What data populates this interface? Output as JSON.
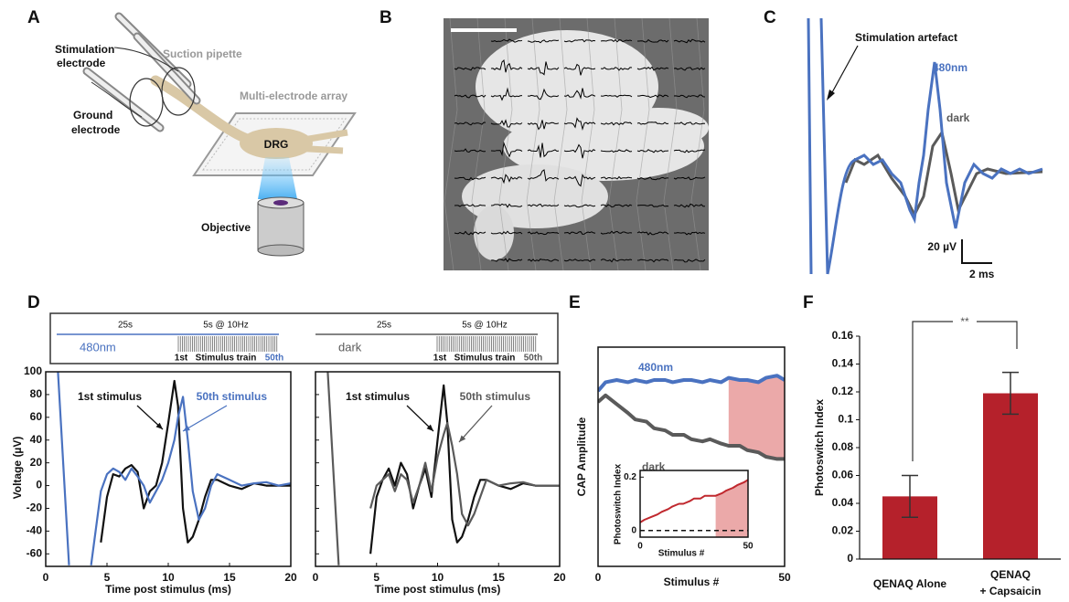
{
  "panel_labels": [
    "A",
    "B",
    "C",
    "D",
    "E",
    "F"
  ],
  "panel_a": {
    "stimulation_electrode": [
      "Stimulation",
      "electrode"
    ],
    "suction_pipette": "Suction pipette",
    "mea": "Multi-electrode array",
    "ground_electrode": [
      "Ground",
      "electrode"
    ],
    "drg": "DRG",
    "objective": "Objective"
  },
  "panel_c": {
    "artefact": "Stimulation artefact",
    "series_480": "480nm",
    "series_dark": "dark",
    "scale_y": "20 µV",
    "scale_x": "2 ms"
  },
  "panel_d": {
    "ylabel": "Voltage (µV)",
    "timeline": [
      {
        "pre": "25s",
        "train": "5s @ 10Hz",
        "condition": "480nm",
        "first": "1st",
        "train_label": "Stimulus train",
        "last": "50th",
        "color": "#4a72c0"
      },
      {
        "pre": "25s",
        "train": "5s @ 10Hz",
        "condition": "dark",
        "first": "1st",
        "train_label": "Stimulus train",
        "last": "50th",
        "color": "#5a5a5a"
      }
    ],
    "charts": [
      {
        "type": "line",
        "xlabel": "Time post stimulus (ms)",
        "xlim": [
          0,
          20
        ],
        "xticks": [
          0,
          5,
          10,
          15,
          20
        ],
        "ylim": [
          -71,
          100
        ],
        "yticks": [
          -60,
          -40,
          -20,
          0,
          20,
          40,
          60,
          80,
          100
        ],
        "x": [
          1.0,
          1.9,
          2.8,
          3.7,
          4.5,
          5,
          5.5,
          6,
          6.5,
          7,
          7.5,
          8,
          8.5,
          9,
          9.5,
          10,
          10.5,
          10.8,
          11.2,
          11.6,
          12,
          12.5,
          13,
          13.5,
          14,
          15,
          16,
          17,
          18,
          19,
          20
        ],
        "series": [
          {
            "name": "1st stimulus",
            "color": "#111111",
            "values": [
              null,
              null,
              null,
              null,
              -50,
              -10,
              10,
              8,
              15,
              18,
              12,
              -20,
              -5,
              0,
              20,
              55,
              92,
              70,
              -20,
              -50,
              -45,
              -30,
              -10,
              5,
              5,
              0,
              -3,
              2,
              0,
              0,
              0
            ]
          },
          {
            "name": "50th stimulus",
            "color": "#4a72c0",
            "values": [
              100,
              -70,
              null,
              -70,
              -5,
              10,
              15,
              12,
              5,
              15,
              8,
              0,
              -15,
              -5,
              5,
              20,
              40,
              60,
              78,
              40,
              -5,
              -30,
              -20,
              0,
              10,
              5,
              0,
              2,
              3,
              0,
              2
            ]
          }
        ]
      },
      {
        "type": "line",
        "xlabel": "Time post stimulus (ms)",
        "xlim": [
          0,
          20
        ],
        "xticks": [
          0,
          5,
          10,
          15,
          20
        ],
        "ylim": [
          -71,
          100
        ],
        "yticks": [
          -60,
          -40,
          -20,
          0,
          20,
          40,
          60,
          80,
          100
        ],
        "x": [
          1.0,
          1.9,
          2.8,
          3.7,
          4.5,
          5,
          5.5,
          6,
          6.5,
          7,
          7.5,
          8,
          8.5,
          9,
          9.5,
          10,
          10.5,
          10.8,
          11.2,
          11.6,
          12,
          12.5,
          13,
          13.5,
          14,
          15,
          16,
          17,
          18,
          19,
          20
        ],
        "series": [
          {
            "name": "1st stimulus",
            "color": "#111111",
            "values": [
              null,
              null,
              null,
              null,
              -60,
              -10,
              5,
              15,
              0,
              20,
              10,
              -20,
              0,
              15,
              -10,
              40,
              88,
              55,
              -30,
              -50,
              -45,
              -30,
              -10,
              5,
              5,
              0,
              -3,
              2,
              0,
              0,
              0
            ]
          },
          {
            "name": "50th stimulus",
            "color": "#5a5a5a",
            "values": [
              100,
              -70,
              null,
              null,
              -20,
              0,
              5,
              10,
              -5,
              10,
              5,
              -15,
              0,
              20,
              -5,
              25,
              45,
              55,
              35,
              10,
              -25,
              -35,
              -25,
              -10,
              5,
              0,
              2,
              3,
              0,
              0,
              0
            ]
          }
        ]
      }
    ]
  },
  "panel_e": {
    "type": "line",
    "xlabel": "Stimulus #",
    "ylabel": "CAP Amplitude",
    "xlim": [
      0,
      50
    ],
    "xticks": [
      0,
      50
    ],
    "ylim": [
      0,
      1
    ],
    "highlight": [
      35,
      50
    ],
    "x": [
      0,
      2,
      5,
      8,
      10,
      13,
      15,
      18,
      20,
      23,
      25,
      28,
      30,
      33,
      35,
      38,
      40,
      43,
      45,
      48,
      50
    ],
    "series": [
      {
        "name": "480nm",
        "color": "#4a72c0",
        "values": [
          0.8,
          0.84,
          0.85,
          0.84,
          0.85,
          0.84,
          0.85,
          0.85,
          0.84,
          0.85,
          0.85,
          0.84,
          0.85,
          0.84,
          0.86,
          0.85,
          0.85,
          0.84,
          0.86,
          0.87,
          0.85
        ]
      },
      {
        "name": "dark",
        "color": "#5a5a5a",
        "values": [
          0.75,
          0.78,
          0.74,
          0.7,
          0.67,
          0.66,
          0.63,
          0.62,
          0.6,
          0.6,
          0.58,
          0.57,
          0.58,
          0.56,
          0.55,
          0.55,
          0.53,
          0.52,
          0.5,
          0.49,
          0.49
        ]
      }
    ],
    "inset": {
      "type": "line",
      "xlabel": "Stimulus #",
      "ylabel": "Photoswitch Index",
      "xlim": [
        0,
        50
      ],
      "xticks": [
        0,
        50
      ],
      "ylim": [
        -0.025,
        0.225
      ],
      "yticks": [
        0,
        0.2
      ],
      "reference": 0,
      "highlight": [
        35,
        50
      ],
      "x": [
        0,
        2,
        5,
        8,
        10,
        13,
        15,
        18,
        20,
        23,
        25,
        28,
        30,
        33,
        35,
        38,
        40,
        43,
        45,
        48,
        50
      ],
      "series": [
        {
          "color": "#c0282e",
          "values": [
            0.03,
            0.04,
            0.05,
            0.06,
            0.07,
            0.08,
            0.09,
            0.1,
            0.1,
            0.11,
            0.12,
            0.12,
            0.13,
            0.13,
            0.13,
            0.14,
            0.15,
            0.16,
            0.17,
            0.18,
            0.19
          ]
        }
      ]
    }
  },
  "panel_f": {
    "type": "bar",
    "ylabel": "Photoswitch Index",
    "categories": [
      [
        "QENAQ Alone"
      ],
      [
        "QENAQ",
        "+ Capsaicin"
      ]
    ],
    "values": [
      0.045,
      0.119
    ],
    "errors": [
      0.015,
      0.015
    ],
    "color": "#b5212b",
    "ylim": [
      0,
      0.16
    ],
    "yticks": [
      0,
      0.02,
      0.04,
      0.06,
      0.08,
      0.1,
      0.12,
      0.14,
      0.16
    ],
    "significance": "**"
  }
}
